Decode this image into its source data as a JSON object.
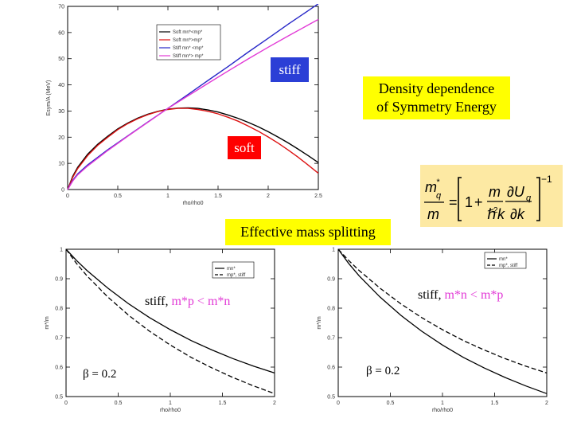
{
  "labels": {
    "stiff": "stiff",
    "soft": "soft",
    "title_line1": "Density dependence",
    "title_line2": "of  Symmetry Energy",
    "effective_mass": "Effective mass splitting",
    "left_relation_prefix": "stiff,  ",
    "left_relation": "m*p  <  m*n",
    "right_relation_prefix": "stiff,  ",
    "right_relation": "m*n  <  m*p",
    "beta_left": "β  = 0.2",
    "beta_right": "β  = 0.2",
    "formula": "m*q/m = [1 + m/ℏ²k ∂Uq/∂k]⁻¹"
  },
  "colors": {
    "stiff_box": "#2b3fd6",
    "soft_box": "#ff0000",
    "label_box_yellow": "#ffff00",
    "formula_box": "#fde9a3",
    "blue": "#2828c8",
    "magenta": "#e23ad6",
    "red": "#dd1111"
  },
  "chart_data": [
    {
      "type": "line",
      "xlabel": "rho/rho0",
      "ylabel": "Esym/A (MeV)",
      "xlim": [
        0,
        2.5
      ],
      "ylim": [
        0,
        70
      ],
      "xticks": [
        "0",
        "0.5",
        "1",
        "1.5",
        "2",
        "2.5"
      ],
      "yticks": [
        "0",
        "10",
        "20",
        "30",
        "40",
        "50",
        "60",
        "70"
      ],
      "legend_position": "top-center",
      "legend": [
        "Soft mn*<mp*",
        "Soft mn*>mp*",
        "Stiff mn* <mp*",
        "Stiff mn*> mp*"
      ],
      "series": [
        {
          "name": "Soft mn*<mp*",
          "color": "#000000",
          "x": [
            0,
            0.05,
            0.1,
            0.2,
            0.3,
            0.4,
            0.5,
            0.6,
            0.7,
            0.8,
            0.9,
            1.0,
            1.1,
            1.2,
            1.3,
            1.4,
            1.5,
            1.6,
            1.7,
            1.8,
            1.9,
            2.0,
            2.1,
            2.2,
            2.3,
            2.4,
            2.5
          ],
          "y": [
            0,
            5,
            8.5,
            13.5,
            17.3,
            20.4,
            23.2,
            25.4,
            27.3,
            28.8,
            29.9,
            30.7,
            31.1,
            31.2,
            31.0,
            30.4,
            29.6,
            28.5,
            27.2,
            25.7,
            24.0,
            22.1,
            20.0,
            17.8,
            15.4,
            12.9,
            10.3
          ]
        },
        {
          "name": "Soft mn*>mp*",
          "color": "#dd1111",
          "x": [
            0,
            0.05,
            0.1,
            0.2,
            0.3,
            0.4,
            0.5,
            0.6,
            0.7,
            0.8,
            0.9,
            1.0,
            1.1,
            1.2,
            1.3,
            1.4,
            1.5,
            1.6,
            1.7,
            1.8,
            1.9,
            2.0,
            2.1,
            2.2,
            2.3,
            2.4,
            2.5
          ],
          "y": [
            0,
            4.6,
            8.0,
            13.0,
            16.9,
            20.0,
            22.9,
            25.2,
            27.1,
            28.6,
            29.8,
            30.6,
            31.0,
            31.0,
            30.6,
            29.9,
            28.9,
            27.6,
            26.1,
            24.3,
            22.3,
            20.1,
            17.7,
            15.1,
            12.3,
            9.3,
            6.2
          ]
        },
        {
          "name": "Stiff mn* <mp*",
          "color": "#2828c8",
          "x": [
            0,
            0.05,
            0.1,
            0.2,
            0.4,
            0.6,
            0.8,
            1.0,
            1.2,
            1.4,
            1.6,
            1.8,
            2.0,
            2.2,
            2.4,
            2.5
          ],
          "y": [
            0,
            3.5,
            6.0,
            9.4,
            15.2,
            20.5,
            25.8,
            31.0,
            36.3,
            41.7,
            47.0,
            52.5,
            57.8,
            63.2,
            68.4,
            71.0
          ]
        },
        {
          "name": "Stiff mn*> mp*",
          "color": "#e23ad6",
          "x": [
            0,
            0.05,
            0.1,
            0.2,
            0.4,
            0.6,
            0.8,
            1.0,
            1.2,
            1.4,
            1.6,
            1.8,
            2.0,
            2.2,
            2.4,
            2.5
          ],
          "y": [
            0,
            3.2,
            5.6,
            9.0,
            14.9,
            20.4,
            25.7,
            31.0,
            35.8,
            40.6,
            45.3,
            49.9,
            54.4,
            58.7,
            62.9,
            65.0
          ]
        }
      ]
    },
    {
      "type": "line",
      "xlabel": "rho/rho0",
      "ylabel": "m*/m",
      "xlim": [
        0,
        2
      ],
      "ylim": [
        0.5,
        1
      ],
      "xticks": [
        "0",
        "0.5",
        "1",
        "1.5",
        "2"
      ],
      "yticks": [
        "0.5",
        "0.6",
        "0.7",
        "0.8",
        "0.9",
        "1"
      ],
      "legend_position": "top-right",
      "legend": [
        "mn*",
        "mp*, stiff"
      ],
      "series": [
        {
          "name": "mn*",
          "color": "#000000",
          "dash": "solid",
          "x": [
            0,
            0.1,
            0.2,
            0.4,
            0.6,
            0.8,
            1.0,
            1.2,
            1.4,
            1.6,
            1.8,
            2.0
          ],
          "y": [
            1.0,
            0.962,
            0.928,
            0.868,
            0.815,
            0.768,
            0.727,
            0.69,
            0.658,
            0.629,
            0.603,
            0.58
          ]
        },
        {
          "name": "mp*, stiff",
          "color": "#000000",
          "dash": "dashed",
          "x": [
            0,
            0.1,
            0.2,
            0.4,
            0.6,
            0.8,
            1.0,
            1.2,
            1.4,
            1.6,
            1.8,
            2.0
          ],
          "y": [
            1.0,
            0.952,
            0.91,
            0.838,
            0.776,
            0.722,
            0.675,
            0.633,
            0.597,
            0.565,
            0.536,
            0.51
          ]
        }
      ]
    },
    {
      "type": "line",
      "xlabel": "rho/rho0",
      "ylabel": "m*/m",
      "xlim": [
        0,
        2
      ],
      "ylim": [
        0.5,
        1
      ],
      "xticks": [
        "0",
        "0.5",
        "1",
        "1.5",
        "2"
      ],
      "yticks": [
        "0.5",
        "0.6",
        "0.7",
        "0.8",
        "0.9",
        "1"
      ],
      "legend_position": "top-right",
      "legend": [
        "mn*",
        "mp*, stiff"
      ],
      "series": [
        {
          "name": "mn*",
          "color": "#000000",
          "dash": "solid",
          "x": [
            0,
            0.1,
            0.2,
            0.4,
            0.6,
            0.8,
            1.0,
            1.2,
            1.4,
            1.6,
            1.8,
            2.0
          ],
          "y": [
            1.0,
            0.952,
            0.91,
            0.838,
            0.776,
            0.722,
            0.675,
            0.633,
            0.597,
            0.565,
            0.536,
            0.51
          ]
        },
        {
          "name": "mp*, stiff",
          "color": "#000000",
          "dash": "dashed",
          "x": [
            0,
            0.1,
            0.2,
            0.4,
            0.6,
            0.8,
            1.0,
            1.2,
            1.4,
            1.6,
            1.8,
            2.0
          ],
          "y": [
            1.0,
            0.962,
            0.928,
            0.868,
            0.815,
            0.768,
            0.727,
            0.69,
            0.658,
            0.629,
            0.603,
            0.58
          ]
        }
      ]
    }
  ]
}
